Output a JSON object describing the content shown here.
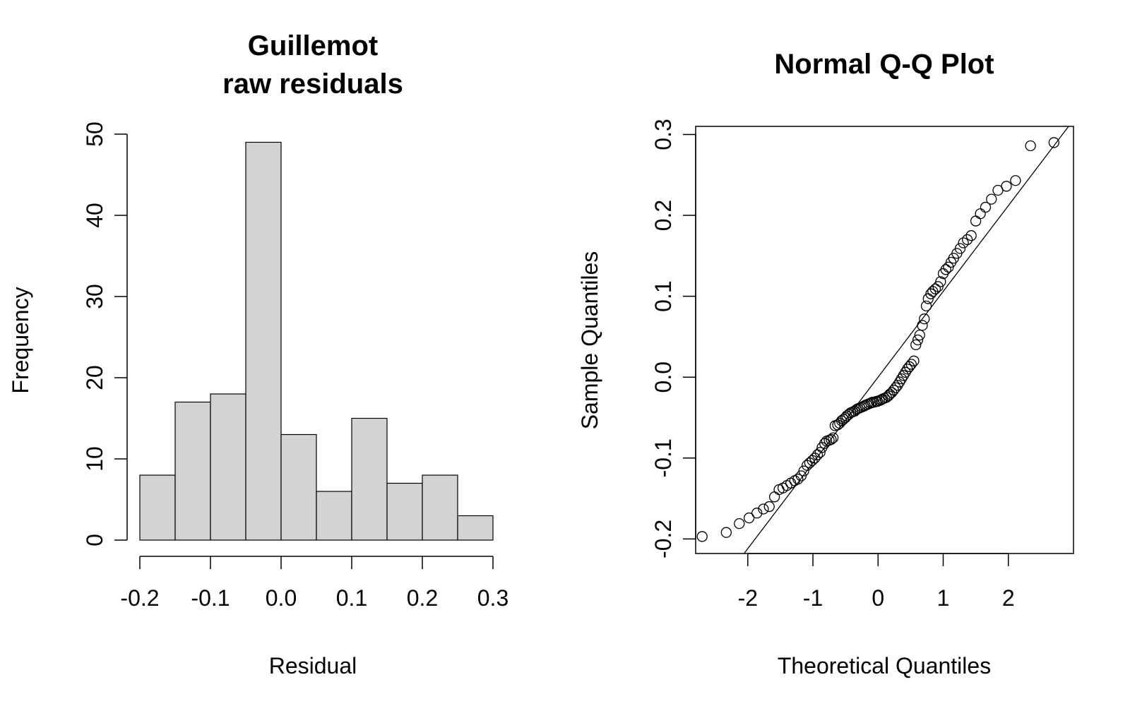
{
  "chart_data": [
    {
      "type": "bar",
      "title_line1": "Guillemot",
      "title_line2": "raw residuals",
      "xlabel": "Residual",
      "ylabel": "Frequency",
      "bin_edges": [
        -0.2,
        -0.15,
        -0.1,
        -0.05,
        0.0,
        0.05,
        0.1,
        0.15,
        0.2,
        0.25,
        0.3
      ],
      "values": [
        8,
        17,
        18,
        49,
        13,
        6,
        15,
        7,
        8,
        3
      ],
      "xlim": [
        -0.2,
        0.3
      ],
      "ylim": [
        0,
        50
      ],
      "x_ticks": [
        -0.2,
        -0.1,
        0.0,
        0.1,
        0.2,
        0.3
      ],
      "x_tick_labels": [
        "-0.2",
        "-0.1",
        "0.0",
        "0.1",
        "0.2",
        "0.3"
      ],
      "y_ticks": [
        0,
        10,
        20,
        30,
        40,
        50
      ],
      "y_tick_labels": [
        "0",
        "10",
        "20",
        "30",
        "40",
        "50"
      ],
      "bar_fill": "#d3d3d3"
    },
    {
      "type": "scatter",
      "title": "Normal Q-Q Plot",
      "xlabel": "Theoretical Quantiles",
      "ylabel": "Sample Quantiles",
      "xlim": [
        -2.8,
        3.0
      ],
      "ylim": [
        -0.218,
        0.31
      ],
      "x_ticks": [
        -2,
        -1,
        0,
        1,
        2
      ],
      "x_tick_labels": [
        "-2",
        "-1",
        "0",
        "1",
        "2"
      ],
      "y_ticks": [
        -0.2,
        -0.1,
        0.0,
        0.1,
        0.2,
        0.3
      ],
      "y_tick_labels": [
        "-0.2",
        "-0.1",
        "0.0",
        "0.1",
        "0.2",
        "0.3"
      ],
      "reference_line": {
        "intercept": 0.0,
        "slope": 0.106
      },
      "points": [
        [
          -2.7,
          -0.197
        ],
        [
          -2.33,
          -0.192
        ],
        [
          -2.13,
          -0.181
        ],
        [
          -1.98,
          -0.174
        ],
        [
          -1.86,
          -0.168
        ],
        [
          -1.76,
          -0.163
        ],
        [
          -1.67,
          -0.16
        ],
        [
          -1.59,
          -0.148
        ],
        [
          -1.52,
          -0.139
        ],
        [
          -1.46,
          -0.137
        ],
        [
          -1.4,
          -0.134
        ],
        [
          -1.34,
          -0.131
        ],
        [
          -1.28,
          -0.128
        ],
        [
          -1.23,
          -0.126
        ],
        [
          -1.18,
          -0.122
        ],
        [
          -1.14,
          -0.116
        ],
        [
          -1.09,
          -0.109
        ],
        [
          -1.05,
          -0.106
        ],
        [
          -1.01,
          -0.103
        ],
        [
          -0.97,
          -0.1
        ],
        [
          -0.93,
          -0.096
        ],
        [
          -0.89,
          -0.093
        ],
        [
          -0.86,
          -0.087
        ],
        [
          -0.82,
          -0.082
        ],
        [
          -0.79,
          -0.079
        ],
        [
          -0.75,
          -0.078
        ],
        [
          -0.72,
          -0.077
        ],
        [
          -0.69,
          -0.075
        ],
        [
          -0.66,
          -0.06
        ],
        [
          -0.62,
          -0.059
        ],
        [
          -0.59,
          -0.057
        ],
        [
          -0.56,
          -0.054
        ],
        [
          -0.53,
          -0.052
        ],
        [
          -0.5,
          -0.05
        ],
        [
          -0.48,
          -0.048
        ],
        [
          -0.45,
          -0.046
        ],
        [
          -0.42,
          -0.044
        ],
        [
          -0.39,
          -0.043
        ],
        [
          -0.36,
          -0.042
        ],
        [
          -0.33,
          -0.04
        ],
        [
          -0.31,
          -0.039
        ],
        [
          -0.28,
          -0.038
        ],
        [
          -0.25,
          -0.037
        ],
        [
          -0.22,
          -0.036
        ],
        [
          -0.2,
          -0.035
        ],
        [
          -0.17,
          -0.034
        ],
        [
          -0.14,
          -0.033
        ],
        [
          -0.11,
          -0.032
        ],
        [
          -0.09,
          -0.031
        ],
        [
          -0.06,
          -0.031
        ],
        [
          -0.03,
          -0.03
        ],
        [
          -0.01,
          -0.03
        ],
        [
          0.02,
          -0.029
        ],
        [
          0.05,
          -0.028
        ],
        [
          0.07,
          -0.027
        ],
        [
          0.1,
          -0.026
        ],
        [
          0.13,
          -0.025
        ],
        [
          0.16,
          -0.023
        ],
        [
          0.18,
          -0.021
        ],
        [
          0.21,
          -0.019
        ],
        [
          0.24,
          -0.016
        ],
        [
          0.27,
          -0.013
        ],
        [
          0.3,
          -0.01
        ],
        [
          0.33,
          -0.006
        ],
        [
          0.36,
          -0.002
        ],
        [
          0.39,
          0.002
        ],
        [
          0.42,
          0.006
        ],
        [
          0.45,
          0.01
        ],
        [
          0.48,
          0.013
        ],
        [
          0.51,
          0.016
        ],
        [
          0.55,
          0.02
        ],
        [
          0.58,
          0.04
        ],
        [
          0.61,
          0.046
        ],
        [
          0.64,
          0.052
        ],
        [
          0.68,
          0.064
        ],
        [
          0.71,
          0.072
        ],
        [
          0.74,
          0.088
        ],
        [
          0.77,
          0.097
        ],
        [
          0.81,
          0.103
        ],
        [
          0.84,
          0.106
        ],
        [
          0.88,
          0.109
        ],
        [
          0.92,
          0.112
        ],
        [
          0.96,
          0.118
        ],
        [
          1.0,
          0.128
        ],
        [
          1.04,
          0.133
        ],
        [
          1.08,
          0.136
        ],
        [
          1.12,
          0.142
        ],
        [
          1.16,
          0.147
        ],
        [
          1.21,
          0.153
        ],
        [
          1.26,
          0.159
        ],
        [
          1.31,
          0.166
        ],
        [
          1.37,
          0.17
        ],
        [
          1.43,
          0.175
        ],
        [
          1.5,
          0.193
        ],
        [
          1.57,
          0.202
        ],
        [
          1.65,
          0.21
        ],
        [
          1.74,
          0.22
        ],
        [
          1.84,
          0.231
        ],
        [
          1.97,
          0.236
        ],
        [
          2.11,
          0.243
        ],
        [
          2.34,
          0.286
        ],
        [
          2.7,
          0.29
        ]
      ]
    }
  ]
}
